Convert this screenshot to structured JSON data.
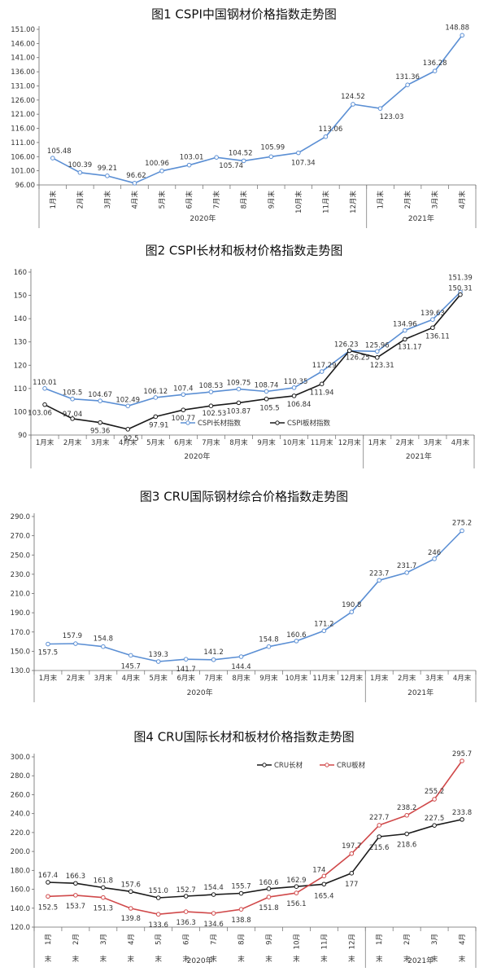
{
  "colors": {
    "blue": "#5b8fd4",
    "black": "#1a1a1a",
    "red": "#d0494a",
    "axis": "#6a6a6a"
  },
  "chart_data": [
    {
      "type": "line",
      "title": "图1  CSPI中国钢材价格指数走势图",
      "categories": [
        "1月末",
        "2月末",
        "3月末",
        "4月末",
        "5月末",
        "6月末",
        "7月末",
        "8月末",
        "9月末",
        "10月末",
        "11月末",
        "12月末",
        "1月末",
        "2月末",
        "3月末",
        "4月末"
      ],
      "groups": [
        {
          "label": "2020年",
          "count": 12
        },
        {
          "label": "2021年",
          "count": 4
        }
      ],
      "yticks": [
        "96.00",
        "101.00",
        "106.00",
        "111.00",
        "116.00",
        "121.00",
        "126.00",
        "131.00",
        "136.00",
        "141.00",
        "146.00",
        "151.00"
      ],
      "ylim": [
        96,
        151
      ],
      "series": [
        {
          "values": [
            105.48,
            100.39,
            99.21,
            96.62,
            100.96,
            103.01,
            105.74,
            104.52,
            105.99,
            107.34,
            113.06,
            124.52,
            123.03,
            131.36,
            136.28,
            148.88
          ],
          "labels": [
            "105.48",
            "100.39",
            "99.21",
            "96.62",
            "100.96",
            "103.01",
            "105.74",
            "104.52",
            "105.99",
            "107.34",
            "113.06",
            "124.52",
            "123.03",
            "131.36",
            "136.28",
            "148.88"
          ]
        }
      ]
    },
    {
      "type": "line",
      "title": "图2  CSPI长材和板材价格指数走势图",
      "categories": [
        "1月末",
        "2月末",
        "3月末",
        "4月末",
        "5月末",
        "6月末",
        "7月末",
        "8月末",
        "9月末",
        "10月末",
        "11月末",
        "12月末",
        "1月末",
        "2月末",
        "3月末",
        "4月末"
      ],
      "groups": [
        {
          "label": "2020年",
          "count": 12
        },
        {
          "label": "2021年",
          "count": 4
        }
      ],
      "yticks": [
        "90",
        "100",
        "110",
        "120",
        "130",
        "140",
        "150",
        "160"
      ],
      "ylim": [
        90,
        160
      ],
      "series": [
        {
          "name": "CSPI长材指数",
          "values": [
            110.01,
            105.5,
            104.67,
            102.49,
            106.12,
            107.4,
            108.53,
            109.75,
            108.74,
            110.35,
            117.29,
            126.23,
            125.96,
            134.96,
            139.63,
            151.39
          ],
          "labels": [
            "110.01",
            "105.5",
            "104.67",
            "102.49",
            "106.12",
            "107.4",
            "108.53",
            "109.75",
            "108.74",
            "110.35",
            "117.29",
            "126.23",
            "125.96",
            "134.96",
            "139.63",
            "151.39"
          ]
        },
        {
          "name": "CSPI板材指数",
          "values": [
            103.06,
            97.04,
            95.36,
            92.5,
            97.91,
            100.77,
            102.53,
            103.87,
            105.5,
            106.84,
            111.94,
            126.25,
            123.31,
            131.17,
            136.11,
            150.31
          ],
          "labels": [
            "103.06",
            "97.04",
            "95.36",
            "92.5",
            "97.91",
            "100.77",
            "102.53",
            "103.87",
            "105.5",
            "106.84",
            "111.94",
            "126.25",
            "123.31",
            "131.17",
            "136.11",
            "150.31"
          ]
        }
      ]
    },
    {
      "type": "line",
      "title": "图3  CRU国际钢材综合价格指数走势图",
      "categories": [
        "1月末",
        "2月末",
        "3月末",
        "4月末",
        "5月末",
        "6月末",
        "7月末",
        "8月末",
        "9月末",
        "10月末",
        "11月末",
        "12月末",
        "1月末",
        "2月末",
        "3月末",
        "4月末"
      ],
      "groups": [
        {
          "label": "2020年",
          "count": 12
        },
        {
          "label": "2021年",
          "count": 4
        }
      ],
      "yticks": [
        "130.0",
        "150.0",
        "170.0",
        "190.0",
        "210.0",
        "230.0",
        "250.0",
        "270.0",
        "290.0"
      ],
      "ylim": [
        130,
        290
      ],
      "series": [
        {
          "values": [
            157.5,
            157.9,
            154.8,
            145.7,
            139.3,
            141.7,
            141.2,
            144.4,
            154.8,
            160.6,
            171.2,
            190.8,
            223.7,
            231.7,
            246,
            275.2
          ],
          "labels": [
            "157.5",
            "157.9",
            "154.8",
            "145.7",
            "139.3",
            "141.7",
            "141.2",
            "144.4",
            "154.8",
            "160.6",
            "171.2",
            "190.8",
            "223.7",
            "231.7",
            "246",
            "275.2"
          ]
        }
      ]
    },
    {
      "type": "line",
      "title": "图4  CRU国际长材和板材价格指数走势图",
      "categories": [
        "1月末",
        "2月末",
        "3月末",
        "4月末",
        "5月末",
        "6月末",
        "7月末",
        "8月末",
        "9月末",
        "10月末",
        "11月末",
        "12月末",
        "1月末",
        "2月末",
        "3月末",
        "4月末"
      ],
      "groups": [
        {
          "label": "2020年",
          "count": 12
        },
        {
          "label": "2021年",
          "count": 4
        }
      ],
      "yticks": [
        "120.0",
        "140.0",
        "160.0",
        "180.0",
        "200.0",
        "220.0",
        "240.0",
        "260.0",
        "280.0",
        "300.0"
      ],
      "ylim": [
        120,
        300
      ],
      "legend": "top-left",
      "series": [
        {
          "name": "CRU长材",
          "values": [
            167.4,
            166.3,
            161.8,
            157.6,
            151.0,
            152.7,
            154.4,
            155.7,
            160.6,
            162.9,
            165.4,
            177,
            215.6,
            218.6,
            227.5,
            233.8
          ],
          "labels": [
            "167.4",
            "166.3",
            "161.8",
            "157.6",
            "151.0",
            "152.7",
            "154.4",
            "155.7",
            "160.6",
            "162.9",
            "165.4",
            "177",
            "215.6",
            "218.6",
            "227.5",
            "233.8"
          ]
        },
        {
          "name": "CRU板材",
          "values": [
            152.5,
            153.7,
            151.3,
            139.8,
            133.6,
            136.3,
            134.6,
            138.8,
            151.8,
            156.1,
            174,
            197.7,
            227.7,
            238.2,
            255.2,
            295.7
          ],
          "labels": [
            "152.5",
            "153.7",
            "151.3",
            "139.8",
            "133.6",
            "136.3",
            "134.6",
            "138.8",
            "151.8",
            "156.1",
            "174",
            "197.7",
            "227.7",
            "238.2",
            "255.2",
            "295.7"
          ]
        }
      ]
    }
  ]
}
